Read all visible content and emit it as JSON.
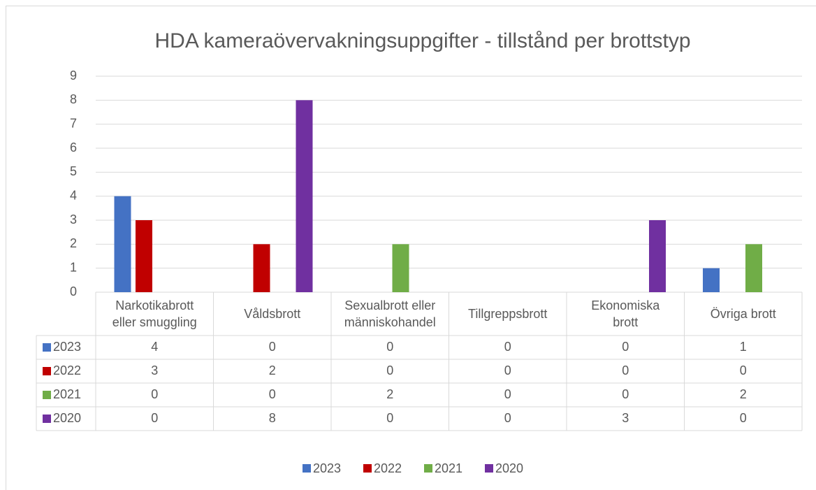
{
  "chart_data": {
    "type": "bar",
    "title": "HDA kameraövervakningsuppgifter - tillstånd per brottstyp",
    "categories": [
      "Narkotikabrott\neller smuggling",
      "Våldsbrott",
      "Sexualbrott eller\nmänniskohandel",
      "Tillgreppsbrott",
      "Ekonomiska\nbrott",
      "Övriga brott"
    ],
    "series": [
      {
        "name": "2023",
        "color": "#4472c4",
        "values": [
          4,
          0,
          0,
          0,
          0,
          1
        ]
      },
      {
        "name": "2022",
        "color": "#c00000",
        "values": [
          3,
          2,
          0,
          0,
          0,
          0
        ]
      },
      {
        "name": "2021",
        "color": "#70ad47",
        "values": [
          0,
          0,
          2,
          0,
          0,
          2
        ]
      },
      {
        "name": "2020",
        "color": "#7030a0",
        "values": [
          0,
          8,
          0,
          0,
          3,
          0
        ]
      }
    ],
    "ylim": [
      0,
      9
    ],
    "yticks": [
      0,
      1,
      2,
      3,
      4,
      5,
      6,
      7,
      8,
      9
    ],
    "grid": true,
    "legend": "bottom"
  }
}
